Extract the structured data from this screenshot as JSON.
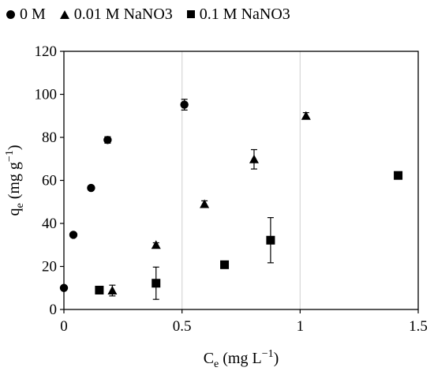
{
  "chart_data": {
    "type": "scatter",
    "xlabel": {
      "base": "C",
      "sub": "e",
      "unit_pre": " (mg L",
      "unit_sup": "−1",
      "unit_post": ")"
    },
    "ylabel": {
      "base": "q",
      "sub": "e",
      "unit_pre": " (mg g",
      "unit_sup": "−1",
      "unit_post": ")"
    },
    "xlim": [
      0,
      1.5
    ],
    "ylim": [
      0,
      120
    ],
    "xticks": [
      0,
      0.5,
      1,
      1.5
    ],
    "xtick_labels": [
      "0",
      "0.5",
      "1",
      "1.5"
    ],
    "yticks": [
      0,
      20,
      40,
      60,
      80,
      100,
      120
    ],
    "ytick_labels": [
      "0",
      "20",
      "40",
      "60",
      "80",
      "100",
      "120"
    ],
    "grid": "vertical",
    "legend_position": "top",
    "series": [
      {
        "name": "0 M",
        "marker": "circle",
        "color": "#000000",
        "points": [
          {
            "x": 0.0,
            "y": 10.0,
            "err": 0
          },
          {
            "x": 0.04,
            "y": 34.7,
            "err": 0
          },
          {
            "x": 0.115,
            "y": 56.5,
            "err": 0
          },
          {
            "x": 0.185,
            "y": 78.8,
            "err": 1.5
          },
          {
            "x": 0.51,
            "y": 95.2,
            "err": 2.5
          }
        ]
      },
      {
        "name": "0.01 M NaNO3",
        "marker": "triangle",
        "color": "#000000",
        "points": [
          {
            "x": 0.205,
            "y": 8.8,
            "err": 2.5
          },
          {
            "x": 0.39,
            "y": 30.0,
            "err": 1.0
          },
          {
            "x": 0.595,
            "y": 49.0,
            "err": 1.5
          },
          {
            "x": 0.805,
            "y": 69.8,
            "err": 4.5
          },
          {
            "x": 1.025,
            "y": 90.0,
            "err": 1.5
          }
        ]
      },
      {
        "name": "0.1 M NaNO3",
        "marker": "square",
        "color": "#000000",
        "points": [
          {
            "x": 0.15,
            "y": 9.0,
            "err": 0
          },
          {
            "x": 0.39,
            "y": 12.2,
            "err": 7.5
          },
          {
            "x": 0.68,
            "y": 20.8,
            "err": 0.5
          },
          {
            "x": 0.875,
            "y": 32.2,
            "err": 10.5
          },
          {
            "x": 1.415,
            "y": 62.3,
            "err": 0
          }
        ]
      }
    ]
  }
}
